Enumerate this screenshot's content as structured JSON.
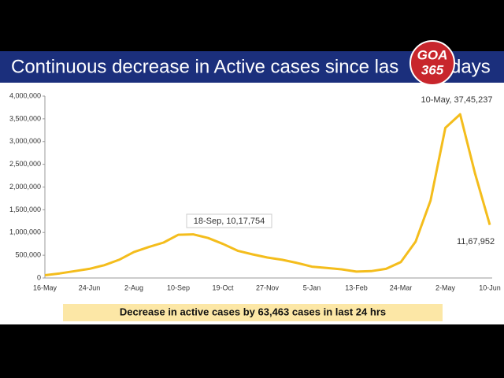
{
  "chart_data": {
    "type": "line",
    "title": "Continuous decrease in Active cases since las",
    "title_end": "days",
    "logo": {
      "line1": "GOA",
      "line2": "365"
    },
    "categories": [
      "16-May",
      null,
      null,
      "24-Jun",
      null,
      null,
      "2-Aug",
      null,
      null,
      "10-Sep",
      null,
      null,
      "19-Oct",
      null,
      null,
      "27-Nov",
      null,
      null,
      "5-Jan",
      null,
      null,
      "13-Feb",
      null,
      null,
      "24-Mar",
      null,
      null,
      "2-May",
      null,
      null,
      "10-Jun"
    ],
    "series": [
      {
        "name": "Active cases",
        "color": "#f4bd1c",
        "values": [
          60000,
          100000,
          150000,
          200000,
          280000,
          400000,
          570000,
          680000,
          780000,
          950000,
          960000,
          880000,
          750000,
          600000,
          520000,
          450000,
          400000,
          330000,
          250000,
          220000,
          190000,
          140000,
          150000,
          200000,
          350000,
          800000,
          1700000,
          3300000,
          3600000,
          2300000,
          1167952
        ]
      }
    ],
    "ylim": [
      0,
      4000000
    ],
    "yticks": [
      0,
      {
        "value": 500000,
        "label": "500,000"
      },
      {
        "value": 1000000,
        "label": "1,000,000"
      },
      {
        "value": 1500000,
        "label": "1,500,000"
      },
      {
        "value": 2000000,
        "label": "2,000,000"
      },
      {
        "value": 2500000,
        "label": "2,500,000"
      },
      {
        "value": 3000000,
        "label": "3,000,000"
      },
      {
        "value": 3500000,
        "label": "3,500,000"
      },
      {
        "value": 4000000,
        "label": "4,000,000"
      }
    ],
    "annotations": [
      "18-Sep, 10,17,754",
      "10-May, 37,45,237",
      "11,67,952"
    ],
    "footer": "Decrease in active cases by 63,463 cases in last 24 hrs"
  }
}
